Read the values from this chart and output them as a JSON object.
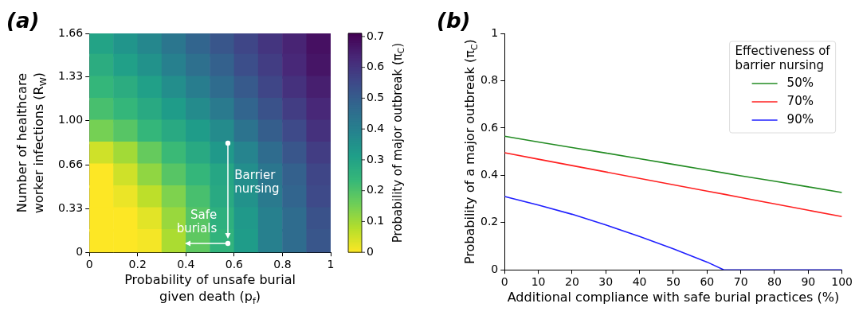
{
  "chart_data": [
    {
      "type": "heatmap",
      "title": "(a)",
      "xlabel": "Probability of unsafe burial given death (p$_{f}$)",
      "ylabel": "Number of healthcare worker infections (R$_{W}$)",
      "clabel": "Probability of major outbreak (π$_{C}$)",
      "xlim": [
        0,
        1
      ],
      "xticks": [
        0,
        0.2,
        0.4,
        0.6,
        0.8,
        1
      ],
      "ylim": [
        0,
        1.66
      ],
      "yticks": [
        0,
        0.33,
        0.66,
        {
          "value": 1,
          "label": "1.00"
        },
        1.33,
        1.66
      ],
      "clim": [
        0,
        0.71
      ],
      "cticks": [
        0,
        0.1,
        0.2,
        0.3,
        0.4,
        0.5,
        0.6,
        0.7
      ],
      "cells": [
        [
          0.3,
          0.34,
          0.38,
          0.43,
          0.48,
          0.52,
          0.56,
          0.6,
          0.64,
          0.68
        ],
        [
          0.27,
          0.31,
          0.35,
          0.4,
          0.45,
          0.49,
          0.54,
          0.58,
          0.63,
          0.67
        ],
        [
          0.24,
          0.27,
          0.31,
          0.36,
          0.41,
          0.46,
          0.51,
          0.56,
          0.61,
          0.65
        ],
        [
          0.21,
          0.24,
          0.28,
          0.32,
          0.37,
          0.42,
          0.48,
          0.53,
          0.58,
          0.63
        ],
        [
          0.15,
          0.19,
          0.24,
          0.28,
          0.32,
          0.37,
          0.44,
          0.5,
          0.55,
          0.61
        ],
        [
          0.05,
          0.1,
          0.17,
          0.23,
          0.28,
          0.33,
          0.39,
          0.46,
          0.52,
          0.58
        ],
        [
          0,
          0.05,
          0.12,
          0.19,
          0.24,
          0.29,
          0.36,
          0.43,
          0.49,
          0.56
        ],
        [
          0,
          0.02,
          0.07,
          0.14,
          0.21,
          0.28,
          0.35,
          0.42,
          0.48,
          0.55
        ],
        [
          0,
          0,
          0.03,
          0.11,
          0.19,
          0.26,
          0.33,
          0.4,
          0.46,
          0.53
        ],
        [
          0,
          0,
          0.01,
          0.09,
          0.18,
          0.25,
          0.32,
          0.4,
          0.46,
          0.52
        ]
      ],
      "annotations": [
        {
          "text": "Barrier nursing",
          "x": 0.575,
          "y": 0.83
        },
        {
          "text": "Safe burials",
          "x": 0.575,
          "y": 0.07
        }
      ]
    },
    {
      "type": "line",
      "title": "(b)",
      "xlabel": "Additional compliance with safe burial practices (%)",
      "ylabel": "Probability of a major outbreak (π$_{C}$)",
      "legend_title": "Effectiveness of barrier nursing",
      "x": [
        0,
        10,
        20,
        30,
        40,
        50,
        60,
        65,
        70,
        80,
        90,
        100
      ],
      "series": [
        {
          "name": "50%",
          "color": "#228b22",
          "values": [
            0.565,
            0.541,
            0.517,
            0.494,
            0.47,
            0.446,
            0.422,
            0.41,
            0.398,
            0.375,
            0.351,
            0.327
          ]
        },
        {
          "name": "70%",
          "color": "#ff2020",
          "values": [
            0.495,
            0.468,
            0.441,
            0.414,
            0.387,
            0.36,
            0.333,
            0.32,
            0.306,
            0.279,
            0.252,
            0.225
          ]
        },
        {
          "name": "90%",
          "color": "#2020ff",
          "values": [
            0.31,
            0.274,
            0.235,
            0.19,
            0.141,
            0.089,
            0.033,
            0,
            0,
            0,
            0,
            0
          ]
        }
      ],
      "xlim": [
        0,
        100
      ],
      "xticks": [
        0,
        10,
        20,
        30,
        40,
        50,
        60,
        70,
        80,
        90,
        100
      ],
      "ylim": [
        0,
        1
      ],
      "yticks": [
        0,
        0.2,
        0.4,
        0.6,
        0.8,
        1
      ],
      "legend": "top right",
      "grid": false
    }
  ]
}
